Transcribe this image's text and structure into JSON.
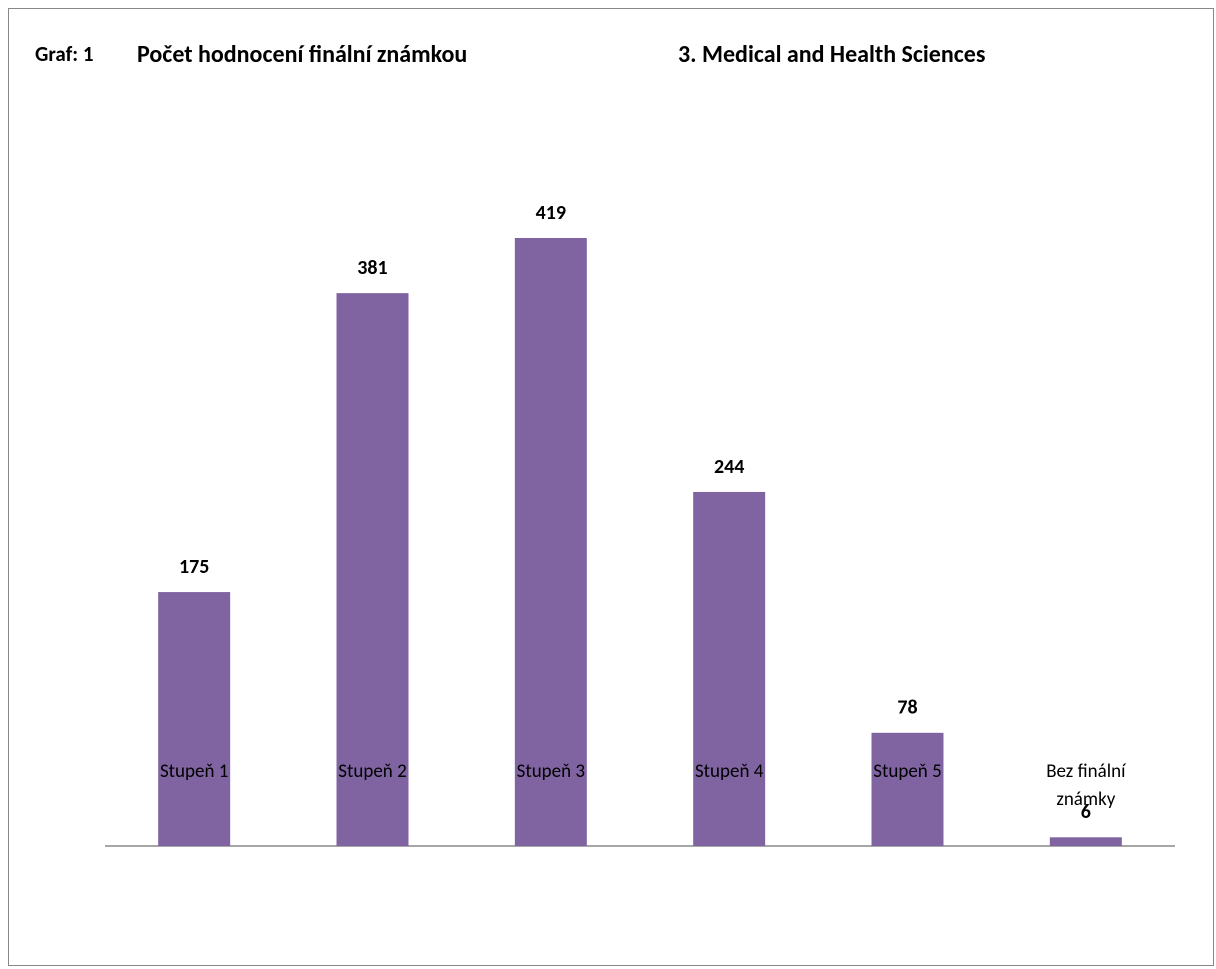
{
  "chart_data": {
    "type": "bar",
    "label": "Graf: 1",
    "title": "Počet hodnocení finální známkou",
    "subtitle": "3. Medical and Health Sciences",
    "categories": [
      "Stupeň 1",
      "Stupeň 2",
      "Stupeň 3",
      "Stupeň 4",
      "Stupeň 5",
      "Bez finální známky"
    ],
    "values": [
      175,
      381,
      419,
      244,
      78,
      6
    ],
    "color": "#8064a2"
  }
}
